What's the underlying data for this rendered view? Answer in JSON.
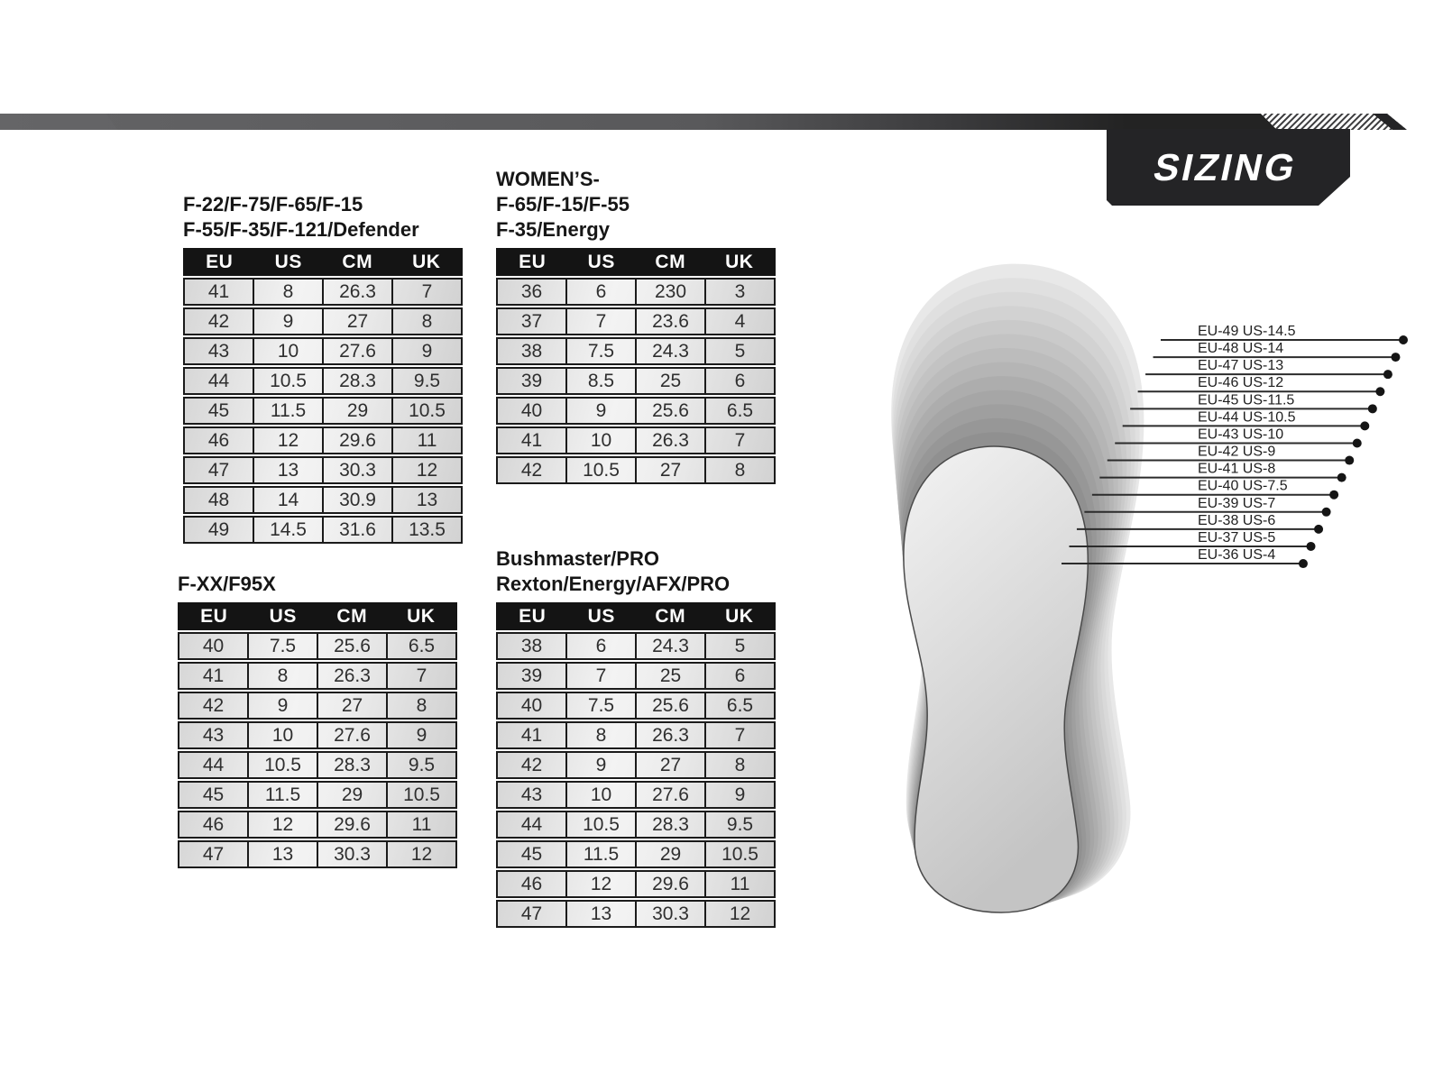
{
  "header": {
    "banner_label": "SIZING"
  },
  "colors": {
    "table_header_bg": "#141414",
    "banner_bg": "#242426",
    "bar_gray": "#59595b",
    "bar_dark": "#232323",
    "cell_text": "#2f2f2f"
  },
  "tables": [
    {
      "id": "mens-f22",
      "title_lines": [
        "F-22/F-75/F-65/F-15",
        "F-55/F-35/F-121/Defender"
      ],
      "columns": [
        "EU",
        "US",
        "CM",
        "UK"
      ],
      "rows": [
        [
          "41",
          "8",
          "26.3",
          "7"
        ],
        [
          "42",
          "9",
          "27",
          "8"
        ],
        [
          "43",
          "10",
          "27.6",
          "9"
        ],
        [
          "44",
          "10.5",
          "28.3",
          "9.5"
        ],
        [
          "45",
          "11.5",
          "29",
          "10.5"
        ],
        [
          "46",
          "12",
          "29.6",
          "11"
        ],
        [
          "47",
          "13",
          "30.3",
          "12"
        ],
        [
          "48",
          "14",
          "30.9",
          "13"
        ],
        [
          "49",
          "14.5",
          "31.6",
          "13.5"
        ]
      ]
    },
    {
      "id": "womens",
      "title_lines": [
        "WOMEN’S-",
        "F-65/F-15/F-55",
        "F-35/Energy"
      ],
      "columns": [
        "EU",
        "US",
        "CM",
        "UK"
      ],
      "rows": [
        [
          "36",
          "6",
          "230",
          "3"
        ],
        [
          "37",
          "7",
          "23.6",
          "4"
        ],
        [
          "38",
          "7.5",
          "24.3",
          "5"
        ],
        [
          "39",
          "8.5",
          "25",
          "6"
        ],
        [
          "40",
          "9",
          "25.6",
          "6.5"
        ],
        [
          "41",
          "10",
          "26.3",
          "7"
        ],
        [
          "42",
          "10.5",
          "27",
          "8"
        ]
      ]
    },
    {
      "id": "fxx",
      "title_lines": [
        "F-XX/F95X"
      ],
      "columns": [
        "EU",
        "US",
        "CM",
        "UK"
      ],
      "rows": [
        [
          "40",
          "7.5",
          "25.6",
          "6.5"
        ],
        [
          "41",
          "8",
          "26.3",
          "7"
        ],
        [
          "42",
          "9",
          "27",
          "8"
        ],
        [
          "43",
          "10",
          "27.6",
          "9"
        ],
        [
          "44",
          "10.5",
          "28.3",
          "9.5"
        ],
        [
          "45",
          "11.5",
          "29",
          "10.5"
        ],
        [
          "46",
          "12",
          "29.6",
          "11"
        ],
        [
          "47",
          "13",
          "30.3",
          "12"
        ]
      ]
    },
    {
      "id": "bushmaster",
      "title_lines": [
        "Bushmaster/PRO",
        "Rexton/Energy/AFX/PRO"
      ],
      "columns": [
        "EU",
        "US",
        "CM",
        "UK"
      ],
      "rows": [
        [
          "38",
          "6",
          "24.3",
          "5"
        ],
        [
          "39",
          "7",
          "25",
          "6"
        ],
        [
          "40",
          "7.5",
          "25.6",
          "6.5"
        ],
        [
          "41",
          "8",
          "26.3",
          "7"
        ],
        [
          "42",
          "9",
          "27",
          "8"
        ],
        [
          "43",
          "10",
          "27.6",
          "9"
        ],
        [
          "44",
          "10.5",
          "28.3",
          "9.5"
        ],
        [
          "45",
          "11.5",
          "29",
          "10.5"
        ],
        [
          "46",
          "12",
          "29.6",
          "11"
        ],
        [
          "47",
          "13",
          "30.3",
          "12"
        ]
      ]
    }
  ],
  "size_diagram": {
    "labels": [
      "EU-49  US-14.5",
      "EU-48  US-14",
      "EU-47 US-13",
      "EU-46  US-12",
      "EU-45  US-11.5",
      "EU-44  US-10.5",
      "EU-43  US-10",
      "EU-42  US-9",
      "EU-41  US-8",
      "EU-40  US-7.5",
      "EU-39  US-7",
      "EU-38  US-6",
      "EU-37  US-5",
      "EU-36  US-4"
    ]
  }
}
